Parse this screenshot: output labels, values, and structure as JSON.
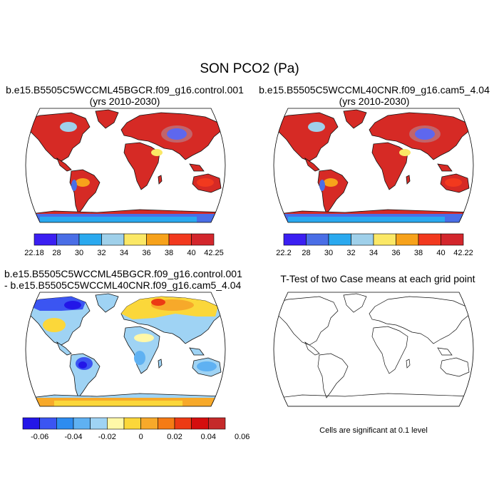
{
  "title": "SON PCO2 (Pa)",
  "panels": [
    {
      "title_line1": "b.e15.B5505C5WCCML45BGCR.f09_g16.control.001",
      "title_line2": "(yrs 2010-2030)",
      "colorbar": {
        "colors": [
          "#3b1ff2",
          "#4a6ee6",
          "#2aa9ef",
          "#9fd0ea",
          "#fbe866",
          "#f7a21b",
          "#f2391e",
          "#d3262c"
        ],
        "labels": [
          "22.18",
          "28",
          "30",
          "32",
          "34",
          "36",
          "38",
          "40",
          "42.25"
        ]
      }
    },
    {
      "title_line1": "b.e15.B5505C5WCCML40CNR.f09_g16.cam5_4.04",
      "title_line2": "(yrs 2010-2030)",
      "colorbar": {
        "colors": [
          "#3b1ff2",
          "#4a6ee6",
          "#2aa9ef",
          "#9fd0ea",
          "#fbe866",
          "#f7a21b",
          "#f2391e",
          "#d3262c"
        ],
        "labels": [
          "22.2",
          "28",
          "30",
          "32",
          "34",
          "36",
          "38",
          "40",
          "42.22"
        ]
      }
    },
    {
      "title_line1": "b.e15.B5505C5WCCML45BGCR.f09_g16.control.001",
      "title_line2": "- b.e15.B5505C5WCCML40CNR.f09_g16.cam5_4.04",
      "colorbar": {
        "colors": [
          "#2316e8",
          "#3b55f2",
          "#2d8cf0",
          "#5fb1f2",
          "#9fd3f4",
          "#fff8a8",
          "#fbd73a",
          "#f7a92a",
          "#f57b15",
          "#ec3a14",
          "#d50e0e",
          "#c52a2a"
        ],
        "labels": [
          "-0.06",
          "-0.04",
          "-0.02",
          "0",
          "0.02",
          "0.04",
          "0.06"
        ]
      }
    },
    {
      "title_line1": "T-Test of two Case means at each grid point",
      "note": "Cells are significant at 0.1 level"
    }
  ]
}
